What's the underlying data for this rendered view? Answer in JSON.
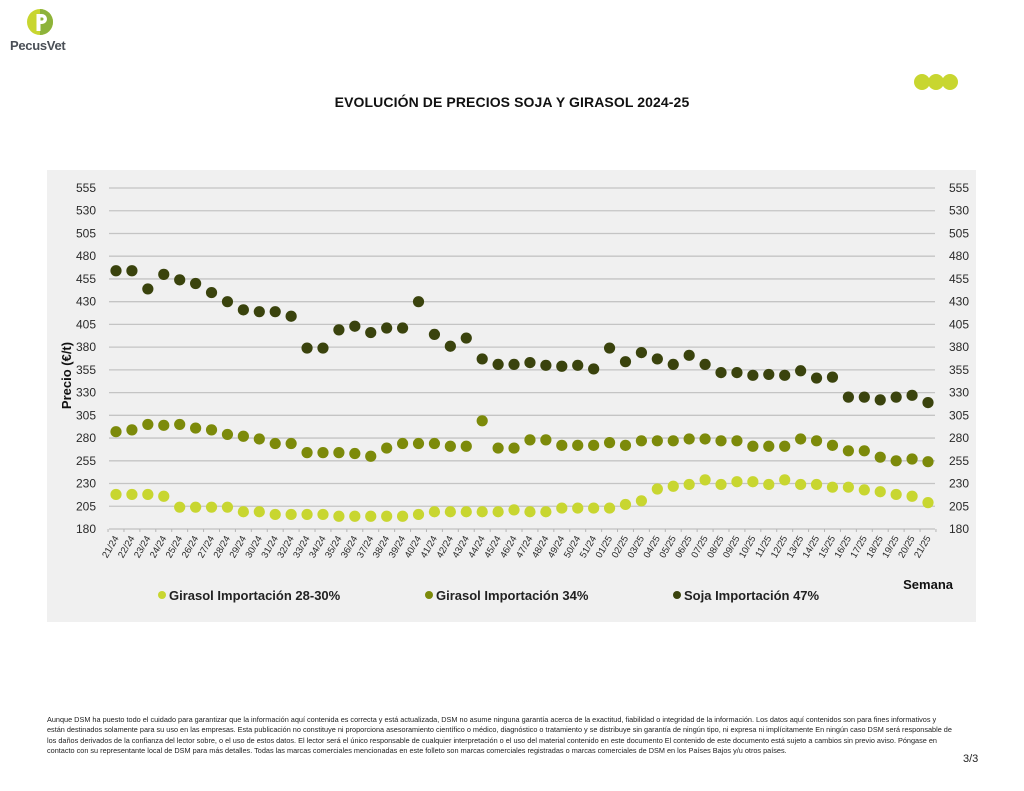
{
  "brand": {
    "name": "PecusVet",
    "logo_icon": "pecusvet-p-logo",
    "accent_color": "#c8d630",
    "logo_dark_color": "#8db33a",
    "decor_icon": "three-green-dots"
  },
  "page": {
    "title": "EVOLUCIÓN DE PRECIOS SOJA Y GIRASOL 2024-25",
    "page_number": "3/3"
  },
  "footer": {
    "disclaimer": "Aunque DSM ha puesto todo el cuidado para garantizar que la información aquí contenida es correcta y está actualizada, DSM no asume ninguna garantía acerca de la exactitud, fiabilidad o integridad de la información. Los datos aquí contenidos son para fines informativos y están destinados solamente para su uso en las empresas. Esta publicación no constituye ni proporciona asesoramiento científico o médico, diagnóstico o tratamiento y se distribuye sin garantía de ningún tipo, ni expresa ni implícitamente En ningún caso DSM será responsable de los daños derivados de la confianza del lector sobre, o el uso de estos datos. El lector será el único responsable de cualquier interpretación o el uso del material contenido en este documento El contenido de este documento está sujeto a cambios sin previo aviso. Póngase en contacto con su representante local de DSM para más detalles. Todas las marcas comerciales mencionadas en este folleto son marcas comerciales registradas o marcas comerciales de DSM en los Países Bajos y/u otros países."
  },
  "chart_data": {
    "type": "scatter",
    "title": "EVOLUCIÓN DE PRECIOS SOJA Y GIRASOL 2024-25",
    "xlabel": "Semana",
    "ylabel": "Precio (€/t)",
    "ylim": [
      180,
      555
    ],
    "yticks": [
      180,
      205,
      230,
      255,
      280,
      305,
      330,
      355,
      380,
      405,
      430,
      455,
      480,
      505,
      530,
      555
    ],
    "secondary_y_axis": true,
    "grid": true,
    "legend_position": "bottom",
    "categories": [
      "21/24",
      "22/24",
      "23/24",
      "24/24",
      "25/24",
      "26/24",
      "27/24",
      "28/24",
      "29/24",
      "30/24",
      "31/24",
      "32/24",
      "33/24",
      "34/24",
      "35/24",
      "36/24",
      "37/24",
      "38/24",
      "39/24",
      "40/24",
      "41/24",
      "42/24",
      "43/24",
      "44/24",
      "45/24",
      "46/24",
      "47/24",
      "48/24",
      "49/24",
      "50/24",
      "51/24",
      "01/25",
      "02/25",
      "03/25",
      "04/25",
      "05/25",
      "06/25",
      "07/25",
      "08/25",
      "09/25",
      "10/25",
      "11/25",
      "12/25",
      "13/25",
      "14/25",
      "15/25",
      "16/25",
      "17/25",
      "18/25",
      "19/25",
      "20/25",
      "21/25"
    ],
    "series": [
      {
        "name": "Girasol Importación 28-30%",
        "color": "#c8d630",
        "values": [
          218,
          218,
          218,
          216,
          204,
          204,
          204,
          204,
          199,
          199,
          196,
          196,
          196,
          196,
          194,
          194,
          194,
          194,
          194,
          196,
          199,
          199,
          199,
          199,
          199,
          201,
          199,
          199,
          203,
          203,
          203,
          203,
          207,
          211,
          224,
          227,
          229,
          234,
          229,
          232,
          232,
          229,
          234,
          229,
          229,
          226,
          226,
          223,
          221,
          218,
          216,
          209
        ]
      },
      {
        "name": "Girasol Importación 34%",
        "color": "#7c8a0a",
        "values": [
          287,
          289,
          295,
          294,
          295,
          291,
          289,
          284,
          282,
          279,
          274,
          274,
          264,
          264,
          264,
          263,
          260,
          269,
          274,
          274,
          274,
          271,
          271,
          299,
          269,
          269,
          278,
          278,
          272,
          272,
          272,
          275,
          272,
          277,
          277,
          277,
          279,
          279,
          277,
          277,
          271,
          271,
          271,
          279,
          277,
          272,
          266,
          266,
          259,
          255,
          257,
          254
        ]
      },
      {
        "name": "Soja Importación 47%",
        "color": "#3a430d",
        "values": [
          464,
          464,
          444,
          460,
          454,
          450,
          440,
          430,
          421,
          419,
          419,
          414,
          379,
          379,
          399,
          403,
          396,
          401,
          401,
          430,
          394,
          381,
          390,
          367,
          361,
          361,
          363,
          360,
          359,
          360,
          356,
          379,
          364,
          374,
          367,
          361,
          371,
          361,
          352,
          352,
          349,
          350,
          349,
          354,
          346,
          347,
          325,
          325,
          322,
          325,
          327,
          319
        ]
      }
    ]
  }
}
